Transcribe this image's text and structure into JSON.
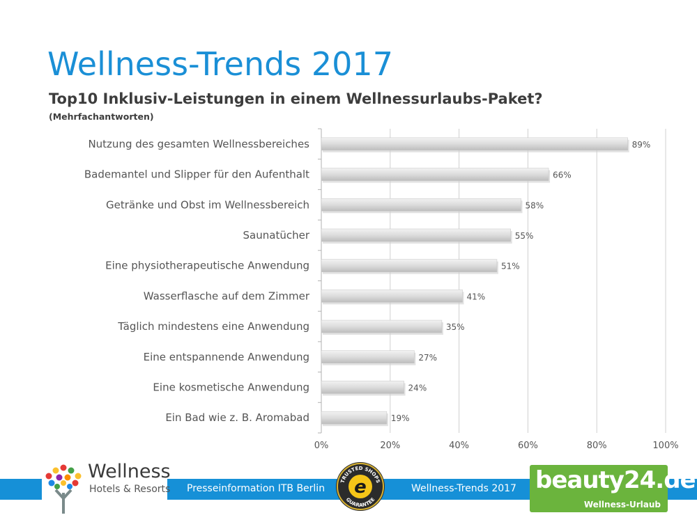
{
  "title": "Wellness-Trends 2017",
  "subtitle": "Top10 Inklusiv-Leistungen in einem Wellnessurlaubs-Paket?",
  "note": "(Mehrfachantworten)",
  "chart_data": {
    "type": "bar",
    "orientation": "horizontal",
    "categories": [
      "Nutzung des gesamten Wellnessbereiches",
      "Bademantel und Slipper für den Aufenthalt",
      "Getränke und Obst im Wellnessbereich",
      "Saunatücher",
      "Eine physiotherapeutische  Anwendung",
      "Wasserflasche auf dem Zimmer",
      "Täglich mindestens eine Anwendung",
      "Eine entspannende Anwendung",
      "Eine kosmetische Anwendung",
      "Ein Bad wie z. B. Aromabad"
    ],
    "values": [
      89,
      66,
      58,
      55,
      51,
      41,
      35,
      27,
      24,
      19
    ],
    "value_labels": [
      "89%",
      "66%",
      "58%",
      "55%",
      "51%",
      "41%",
      "35%",
      "27%",
      "24%",
      "19%"
    ],
    "xlim": [
      0,
      100
    ],
    "x_ticks": [
      0,
      20,
      40,
      60,
      80,
      100
    ],
    "x_tick_labels": [
      "0%",
      "20%",
      "40%",
      "60%",
      "80%",
      "100%"
    ],
    "grid": true,
    "bar_color": "#d9d9d9"
  },
  "footer": {
    "press": "Presseinformation ITB Berlin",
    "trends": "Wellness-Trends 2017",
    "band_color": "#1690d7"
  },
  "logos": {
    "wellness_word": "Wellness",
    "wellness_sub": "Hotels & Resorts",
    "badge_icon": "trusted-shops-badge",
    "badge_top": "TRUSTED SHOPS",
    "badge_bottom": "GUARANTEE",
    "beauty_word": "beauty24.de",
    "beauty_sub": "Wellness-Urlaub"
  }
}
